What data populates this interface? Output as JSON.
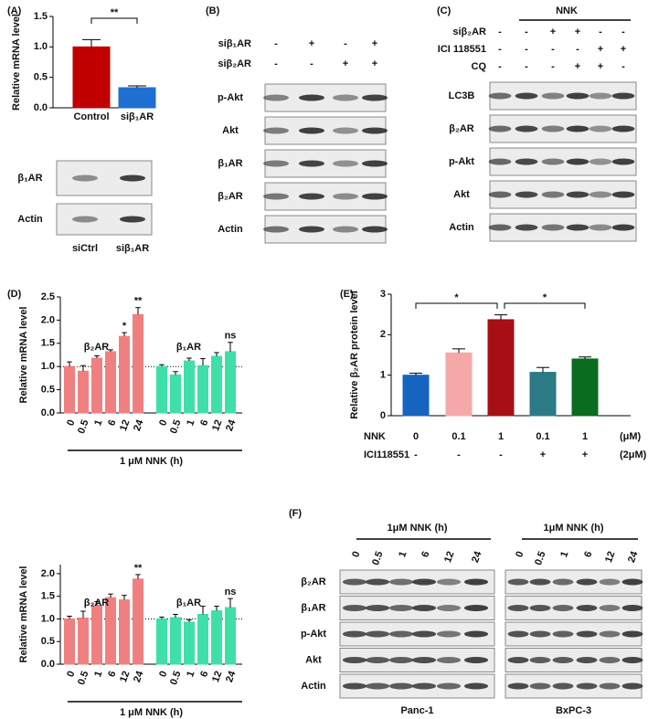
{
  "panel_labels": [
    "(A)",
    "(B)",
    "(C)",
    "(D)",
    "(E)",
    "(F)"
  ],
  "chart_data": [
    {
      "type": "bar",
      "y_label": "Relative  mRNA level",
      "categories": [
        "Control",
        "siβ₁AR"
      ],
      "values": [
        1.0,
        0.33
      ],
      "errors": [
        0.12,
        0.03
      ],
      "colors": [
        "#c00000",
        "#1f6fd1"
      ],
      "ylim": [
        0,
        1.5
      ],
      "yticks": [
        {
          "value": 0,
          "label": "0.0"
        },
        0.5,
        {
          "value": 1,
          "label": "1.0"
        },
        1.5
      ],
      "comparisons": [
        {
          "pair": [
            0,
            1
          ],
          "label": "**"
        }
      ]
    },
    {
      "type": "bar",
      "y_label": "Relative mRNA level",
      "x_label": "1 μM NNK   (h)",
      "categories": [
        "0",
        "0.5",
        "1",
        "6",
        "12",
        "24"
      ],
      "refline": 1,
      "series": [
        {
          "name": "β₂AR",
          "color": "#f08080",
          "values": [
            1.0,
            0.9,
            1.18,
            1.32,
            1.65,
            2.12
          ],
          "errors": [
            0.1,
            0.12,
            0.05,
            0.04,
            0.08,
            0.15
          ],
          "significance": [
            null,
            null,
            null,
            null,
            "*",
            "**"
          ]
        },
        {
          "name": "β₁AR",
          "color": "#3fe0a8",
          "values": [
            1.0,
            0.82,
            1.12,
            1.02,
            1.22,
            1.32
          ],
          "errors": [
            0.04,
            0.07,
            0.06,
            0.15,
            0.08,
            0.2
          ],
          "significance": [
            null,
            null,
            null,
            null,
            null,
            "ns"
          ]
        }
      ],
      "ylim": [
        0,
        2.5
      ],
      "yticks": [
        {
          "value": 0,
          "label": "0.0"
        },
        0.5,
        {
          "value": 1,
          "label": "1.0"
        },
        1.5,
        {
          "value": 2,
          "label": "2.0"
        },
        2.5
      ]
    },
    {
      "type": "bar",
      "y_label": "Relative mRNA level",
      "x_label": "1 μM NNK   (h)",
      "categories": [
        "0",
        "0.5",
        "1",
        "6",
        "12",
        "24"
      ],
      "refline": 1,
      "series": [
        {
          "name": "β₂AR",
          "color": "#f08080",
          "values": [
            1.0,
            1.02,
            1.3,
            1.47,
            1.42,
            1.88
          ],
          "errors": [
            0.06,
            0.15,
            0.08,
            0.08,
            0.1,
            0.1
          ],
          "significance": [
            null,
            null,
            null,
            null,
            null,
            "**"
          ]
        },
        {
          "name": "β₁AR",
          "color": "#3fe0a8",
          "values": [
            1.0,
            1.03,
            0.93,
            1.1,
            1.18,
            1.25
          ],
          "errors": [
            0.04,
            0.07,
            0.05,
            0.18,
            0.1,
            0.2
          ],
          "significance": [
            null,
            null,
            null,
            null,
            null,
            "ns"
          ]
        }
      ],
      "ylim": [
        0,
        2.2
      ],
      "yticks": [
        {
          "value": 0,
          "label": "0.0"
        },
        0.5,
        {
          "value": 1,
          "label": "1.0"
        },
        1.5,
        {
          "value": 2,
          "label": "2.0"
        }
      ]
    },
    {
      "type": "bar",
      "y_label": "Relative β₂AR protein level",
      "values": [
        1.0,
        1.55,
        2.37,
        1.07,
        1.4
      ],
      "errors": [
        0.05,
        0.1,
        0.12,
        0.12,
        0.05
      ],
      "colors": [
        "#1565c0",
        "#f6a8a8",
        "#a50f15",
        "#2b7a85",
        "#0b6b1e"
      ],
      "ylim": [
        0,
        3
      ],
      "yticks": [
        0,
        1,
        2,
        3
      ],
      "comparisons": [
        {
          "pair": [
            0,
            2
          ],
          "label": "*"
        },
        {
          "pair": [
            2,
            4
          ],
          "label": "*"
        }
      ],
      "treatments": [
        {
          "label": "NNK",
          "values": [
            "0",
            "0.1",
            "1",
            "0.1",
            "1"
          ],
          "unit": "(μM)"
        },
        {
          "label": "ICI118551",
          "values": [
            "-",
            "-",
            "-",
            "+",
            "+"
          ],
          "unit": "(2μM)"
        }
      ]
    }
  ],
  "blots": {
    "A": {
      "rows": [
        "β₁AR",
        "Actin"
      ],
      "lanes": [
        "siCtrl",
        "siβ₁AR"
      ]
    },
    "B": {
      "conditions": [
        {
          "label": "siβ₁AR",
          "signs": [
            "-",
            "+",
            "-",
            "+"
          ]
        },
        {
          "label": "siβ₂AR",
          "signs": [
            "-",
            "-",
            "+",
            "+"
          ]
        }
      ],
      "rows": [
        "p-Akt",
        "Akt",
        "β₁AR",
        "β₂AR",
        "Actin"
      ]
    },
    "C": {
      "group": "NNK",
      "conditions": [
        {
          "label": "siβ₂AR",
          "signs": [
            "-",
            "-",
            "+",
            "+",
            "-",
            "-"
          ]
        },
        {
          "label": "ICI 118551",
          "signs": [
            "-",
            "-",
            "-",
            "-",
            "+",
            "+"
          ]
        },
        {
          "label": "CQ",
          "signs": [
            "-",
            "-",
            "-",
            "+",
            "+",
            "-"
          ]
        }
      ],
      "rows": [
        "LC3B",
        "β₂AR",
        "p-Akt",
        "Akt",
        "Actin"
      ]
    },
    "F": {
      "header": "1μM NNK  (h)",
      "times": [
        "0",
        "0.5",
        "1",
        "6",
        "12",
        "24"
      ],
      "rows": [
        "β₂AR",
        "β₁AR",
        "p-Akt",
        "Akt",
        "Actin"
      ],
      "cell_lines": [
        "Panc-1",
        "BxPC-3"
      ]
    }
  }
}
